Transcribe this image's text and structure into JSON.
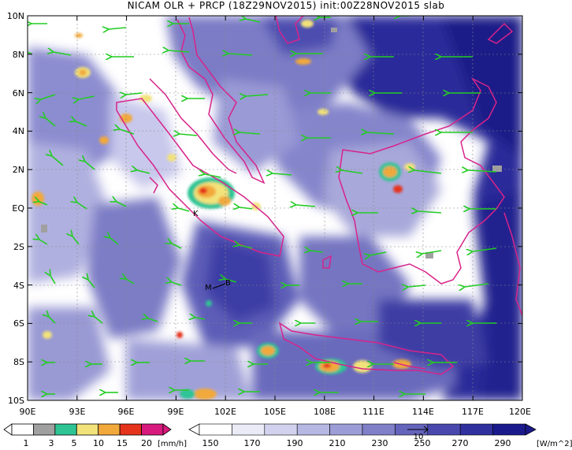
{
  "title": "NICAM OLR + PRCP (18Z29NOV2015) init:00Z28NOV2015 slab",
  "lat_labels": [
    "10N",
    "8N",
    "6N",
    "4N",
    "2N",
    "EQ",
    "2S",
    "4S",
    "6S",
    "8S",
    "10S"
  ],
  "lon_labels": [
    "90E",
    "93E",
    "96E",
    "99E",
    "102E",
    "105E",
    "108E",
    "111E",
    "114E",
    "117E",
    "120E"
  ],
  "map_extent": {
    "lon_min": 90,
    "lon_max": 120,
    "lat_min": -10,
    "lat_max": 10
  },
  "station_labels": [
    "K",
    "M",
    "B"
  ],
  "precip_legend": {
    "values": [
      "1",
      "3",
      "5",
      "10",
      "15",
      "20"
    ],
    "unit": "[mm/h]",
    "colors": [
      "#ffffff",
      "#a0a0a0",
      "#2ec494",
      "#f2e27a",
      "#f2a93b",
      "#e6331c",
      "#d81a7e"
    ]
  },
  "olr_legend": {
    "values": [
      "150",
      "170",
      "190",
      "210",
      "230",
      "250",
      "270",
      "290"
    ],
    "unit": "[W/m^2]",
    "colors": [
      "#ffffff",
      "#ebebf7",
      "#d2d2ee",
      "#b7b7e3",
      "#9c9cd6",
      "#8080c9",
      "#6464bc",
      "#4848ad",
      "#30309e",
      "#1a1a8c"
    ],
    "vector_ref": "10"
  },
  "colors": {
    "coast": "#d8238a",
    "wind": "#22cc22",
    "grid": "#888888"
  }
}
